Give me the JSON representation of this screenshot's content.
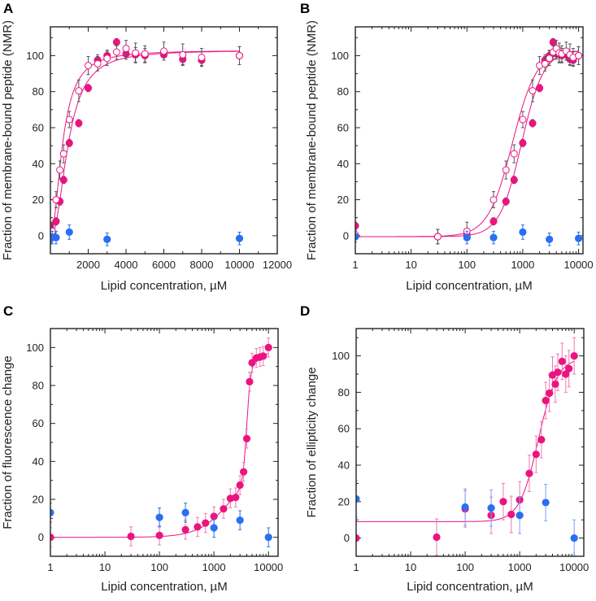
{
  "colors": {
    "peptide": "#ec1380",
    "control": "#2b6ff0",
    "error_bar_gray": "#555555",
    "axis": "#222222"
  },
  "chart_data": [
    {
      "panel": "A",
      "type": "scatter",
      "xscale": "linear",
      "xlabel": "Lipid concentration, µM",
      "ylabel": "Fraction of membrane-bound peptide (NMR)",
      "xlim": [
        0,
        12000
      ],
      "ylim": [
        -10,
        116
      ],
      "xticks": [
        2000,
        4000,
        6000,
        8000,
        10000,
        12000
      ],
      "xtick_labels": [
        "2000",
        "4000",
        "6000",
        "8000",
        "10000",
        "12000"
      ],
      "yticks": [
        0,
        20,
        40,
        60,
        80,
        100
      ],
      "ytick_labels": [
        "0",
        "20",
        "40",
        "60",
        "80",
        "100"
      ],
      "grid": false,
      "fit_lines": true,
      "series": [
        {
          "marker": "filled",
          "color": "#ec1380",
          "error_color": "#555555",
          "x": [
            1,
            30,
            100,
            300,
            500,
            700,
            1000,
            1500,
            2000,
            2500,
            3000,
            3500,
            4000,
            4500,
            5000,
            6000,
            7000,
            8000,
            10000
          ],
          "y": [
            5.5,
            -0.5,
            0.5,
            8,
            19,
            31,
            51.5,
            62.5,
            82,
            97.5,
            100,
            107.5,
            101,
            100.5,
            100,
            100.5,
            98,
            97.5,
            100
          ],
          "err": [
            2,
            4,
            3,
            2,
            2,
            2,
            2,
            2,
            2,
            3,
            3,
            2,
            3,
            4,
            4,
            3,
            3,
            3,
            5
          ]
        },
        {
          "marker": "open",
          "color": "#ec1380",
          "error_color": "#555555",
          "x": [
            1,
            30,
            100,
            300,
            500,
            700,
            1000,
            1500,
            2000,
            2500,
            3000,
            3500,
            4000,
            4500,
            5000,
            6000,
            7000,
            8000,
            10000
          ],
          "y": [
            0.5,
            -0.5,
            2.5,
            20,
            36.5,
            45.5,
            64.5,
            80.5,
            94.5,
            95.5,
            98.5,
            102,
            104,
            101.5,
            101,
            102.5,
            100.5,
            99,
            100
          ],
          "err": [
            2,
            4,
            5,
            4.5,
            5,
            5,
            4.5,
            6,
            5,
            4,
            4,
            4,
            4.5,
            5.5,
            4.5,
            5,
            6,
            5,
            5
          ]
        },
        {
          "marker": "filled",
          "color": "#2b6ff0",
          "error_color": "#2b6ff0",
          "x": [
            1,
            100,
            300,
            1000,
            3000,
            10000
          ],
          "y": [
            -0.5,
            -1,
            -1,
            2,
            -2,
            -1.5
          ],
          "err": [
            3,
            3.5,
            3.5,
            4,
            3.5,
            3.5
          ]
        }
      ]
    },
    {
      "panel": "B",
      "type": "scatter",
      "xscale": "log",
      "xlabel": "Lipid concentration, µM",
      "ylabel": "Fraction of membrane-bound peptide (NMR)",
      "xlim": [
        1,
        12000
      ],
      "ylim": [
        -10,
        116
      ],
      "xticks": [
        1,
        10,
        100,
        1000,
        10000
      ],
      "xtick_labels": [
        "1",
        "10",
        "100",
        "1000",
        "10000"
      ],
      "yticks": [
        0,
        20,
        40,
        60,
        80,
        100
      ],
      "ytick_labels": [
        "0",
        "20",
        "40",
        "60",
        "80",
        "100"
      ],
      "grid": false,
      "fit_lines": true,
      "series": [
        {
          "marker": "filled",
          "color": "#ec1380",
          "error_color": "#555555",
          "x": [
            1,
            30,
            100,
            300,
            500,
            700,
            1000,
            1500,
            2000,
            2500,
            3000,
            3500,
            4000,
            4500,
            5000,
            6000,
            7000,
            8000,
            10000
          ],
          "y": [
            5.5,
            -0.5,
            0.5,
            8,
            19,
            31,
            51.5,
            62.5,
            82,
            97.5,
            100,
            107.5,
            101,
            100.5,
            100,
            100.5,
            98,
            97.5,
            100
          ],
          "err": [
            2,
            4,
            3,
            2,
            2,
            2,
            2,
            2,
            2,
            3,
            3,
            2,
            3,
            4,
            4,
            3,
            3,
            3,
            5
          ]
        },
        {
          "marker": "open",
          "color": "#ec1380",
          "error_color": "#555555",
          "x": [
            1,
            30,
            100,
            300,
            500,
            700,
            1000,
            1500,
            2000,
            2500,
            3000,
            3500,
            4000,
            4500,
            5000,
            6000,
            7000,
            8000,
            10000
          ],
          "y": [
            0.5,
            -0.5,
            2.5,
            20,
            36.5,
            45.5,
            64.5,
            80.5,
            94.5,
            95.5,
            98.5,
            102,
            104,
            101.5,
            101,
            102.5,
            100.5,
            99,
            100
          ],
          "err": [
            2,
            4,
            5,
            4.5,
            5,
            5,
            4.5,
            6,
            5,
            4,
            4,
            4,
            4.5,
            5.5,
            4.5,
            5,
            6,
            5,
            5
          ]
        },
        {
          "marker": "filled",
          "color": "#2b6ff0",
          "error_color": "#2b6ff0",
          "x": [
            1,
            100,
            300,
            1000,
            3000,
            10000
          ],
          "y": [
            -0.5,
            -1,
            -1,
            2,
            -2,
            -1.5
          ],
          "err": [
            3,
            3.5,
            3.5,
            4,
            3.5,
            3.5
          ]
        }
      ]
    },
    {
      "panel": "C",
      "type": "scatter",
      "xscale": "log",
      "xlabel": "Lipid concentration, µM",
      "ylabel": "Fraction of fluorescence change",
      "xlim": [
        1,
        15000
      ],
      "ylim": [
        -10,
        110
      ],
      "xticks": [
        1,
        10,
        100,
        1000,
        10000
      ],
      "xtick_labels": [
        "1",
        "10",
        "100",
        "1000",
        "10000"
      ],
      "yticks": [
        0,
        20,
        40,
        60,
        80,
        100
      ],
      "ytick_labels": [
        "0",
        "20",
        "40",
        "60",
        "80",
        "100"
      ],
      "grid": false,
      "fit_lines": true,
      "series": [
        {
          "marker": "filled",
          "color": "#ec1380",
          "error_color": "#f07ab0",
          "x": [
            1,
            30,
            100,
            300,
            500,
            700,
            1000,
            1500,
            2000,
            2500,
            3000,
            3500,
            4000,
            4500,
            5000,
            6000,
            7000,
            8000,
            10000
          ],
          "y": [
            0,
            0.5,
            1,
            4,
            5.5,
            7.5,
            11,
            15,
            20.5,
            21,
            27.5,
            34.5,
            52,
            82,
            92,
            94.5,
            95,
            95.5,
            100
          ],
          "err": [
            5,
            5,
            5,
            5,
            5,
            5,
            5,
            5,
            5,
            5,
            5,
            5,
            5,
            5,
            5,
            5,
            5,
            5,
            5
          ]
        },
        {
          "marker": "filled",
          "color": "#2b6ff0",
          "error_color": "#2b6ff0",
          "x": [
            1,
            100,
            300,
            1000,
            3000,
            10000
          ],
          "y": [
            13,
            10.5,
            13,
            5,
            9,
            0
          ],
          "err": [
            5,
            5,
            5,
            5,
            5,
            5
          ]
        }
      ]
    },
    {
      "panel": "D",
      "type": "scatter",
      "xscale": "log",
      "xlabel": "Lipid concentration, µM",
      "ylabel": "Fraction of ellipticity change",
      "xlim": [
        1,
        15000
      ],
      "ylim": [
        -10,
        115
      ],
      "xticks": [
        1,
        10,
        100,
        1000,
        10000
      ],
      "xtick_labels": [
        "1",
        "10",
        "100",
        "1000",
        "10000"
      ],
      "yticks": [
        0,
        20,
        40,
        60,
        80,
        100
      ],
      "ytick_labels": [
        "0",
        "20",
        "40",
        "60",
        "80",
        "100"
      ],
      "grid": false,
      "fit_lines": true,
      "series": [
        {
          "marker": "filled",
          "color": "#ec1380",
          "error_color": "#f07ab0",
          "x": [
            1,
            30,
            100,
            300,
            500,
            700,
            1000,
            1500,
            2000,
            2500,
            3000,
            3500,
            4000,
            4500,
            5000,
            6000,
            7000,
            8000,
            10000
          ],
          "y": [
            0,
            0.5,
            16,
            12.5,
            20,
            13,
            21,
            35.5,
            46,
            54,
            75.5,
            79.5,
            89.5,
            84.5,
            91,
            97,
            90,
            93,
            100
          ],
          "err": [
            10,
            10,
            10,
            10,
            10,
            10,
            10,
            10,
            10,
            10,
            10,
            10,
            10,
            10,
            10,
            10,
            10,
            10,
            10
          ]
        },
        {
          "marker": "filled",
          "color": "#2b6ff0",
          "error_color": "#7aa2f5",
          "x": [
            1,
            100,
            300,
            1000,
            3000,
            10000
          ],
          "y": [
            21.5,
            17,
            16.5,
            12.5,
            19.5,
            0
          ],
          "err": [
            10,
            10,
            10,
            10,
            10,
            10
          ]
        }
      ]
    }
  ]
}
